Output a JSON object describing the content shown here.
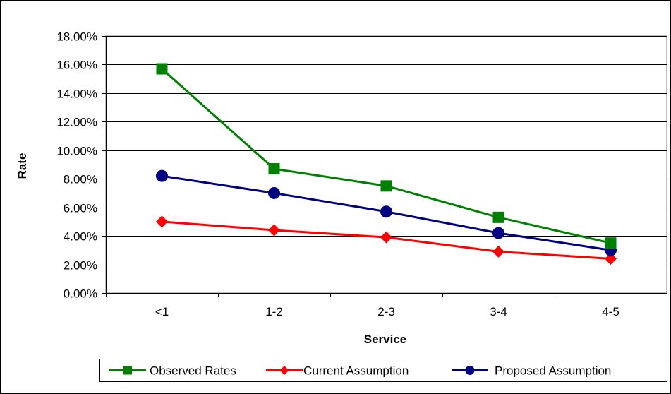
{
  "chart_data": {
    "type": "line",
    "title": "",
    "xlabel": "Service",
    "ylabel": "Rate",
    "categories": [
      "<1",
      "1-2",
      "2-3",
      "3-4",
      "4-5"
    ],
    "ylim": [
      0,
      0.18
    ],
    "yticks": [
      0,
      0.02,
      0.04,
      0.06,
      0.08,
      0.1,
      0.12,
      0.14,
      0.16,
      0.18
    ],
    "ytick_labels": [
      "0.00%",
      "2.00%",
      "4.00%",
      "6.00%",
      "8.00%",
      "10.00%",
      "12.00%",
      "14.00%",
      "16.00%",
      "18.00%"
    ],
    "grid": "horizontal",
    "legend_position": "bottom",
    "series": [
      {
        "name": "Observed Rates",
        "values": [
          0.157,
          0.087,
          0.075,
          0.053,
          0.035
        ],
        "color": "#008000",
        "marker": "square"
      },
      {
        "name": "Current Assumption",
        "values": [
          0.05,
          0.044,
          0.039,
          0.029,
          0.024
        ],
        "color": "#ff0000",
        "marker": "diamond"
      },
      {
        "name": "Proposed Assumption",
        "values": [
          0.082,
          0.07,
          0.057,
          0.042,
          0.03
        ],
        "color": "#000080",
        "marker": "circle"
      }
    ]
  }
}
